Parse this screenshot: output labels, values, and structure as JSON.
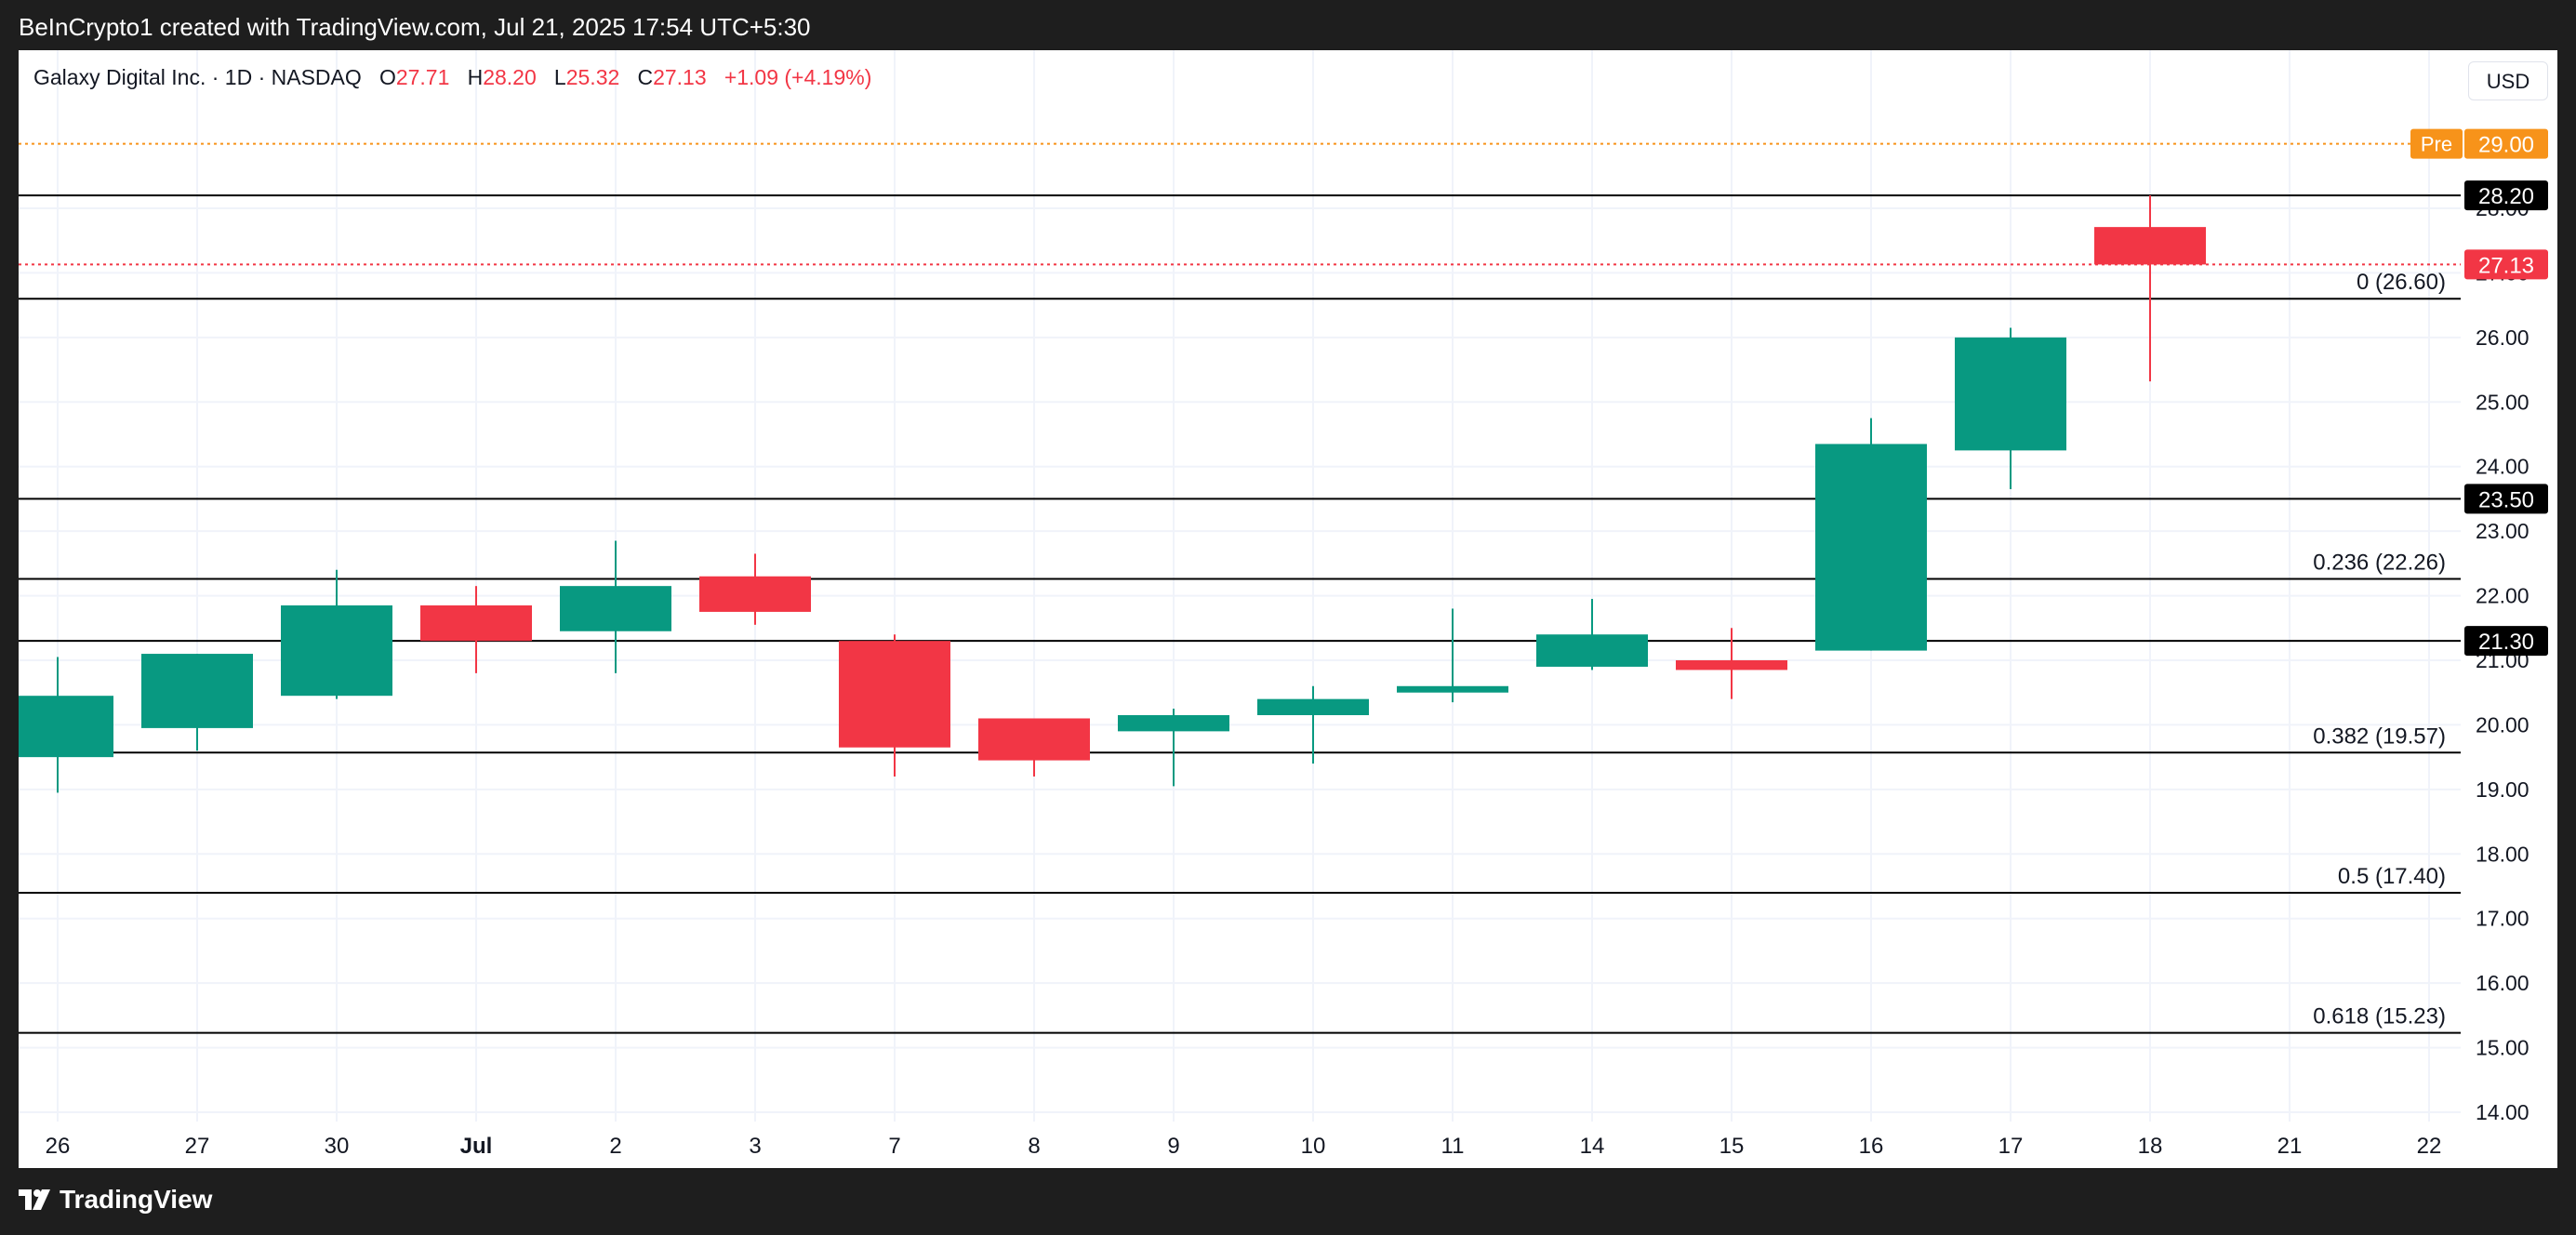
{
  "header": {
    "attribution": "BeInCrypto1 created with TradingView.com, Jul 21, 2025 17:54 UTC+5:30"
  },
  "legend": {
    "symbol": "Galaxy Digital Inc. · 1D · NASDAQ",
    "o_label": "O",
    "o_value": "27.71",
    "h_label": "H",
    "h_value": "28.20",
    "l_label": "L",
    "l_value": "25.32",
    "c_label": "C",
    "c_value": "27.13",
    "change": "+1.09 (+4.19%)"
  },
  "currency_button": "USD",
  "footer": {
    "brand": "TradingView"
  },
  "colors": {
    "up": "#089981",
    "down": "#f23645",
    "premarket": "#f7931a",
    "level": "#000000"
  },
  "chart_data": {
    "type": "candlestick",
    "title": "",
    "xlabel": "",
    "ylabel": "",
    "ylim": [
      14,
      30
    ],
    "grid": true,
    "y_ticks": [
      "14.00",
      "15.00",
      "16.00",
      "17.00",
      "18.00",
      "19.00",
      "20.00",
      "21.00",
      "22.00",
      "23.00",
      "24.00",
      "25.00",
      "26.00",
      "27.00",
      "28.00"
    ],
    "x_labels": [
      "26",
      "27",
      "30",
      "Jul",
      "2",
      "3",
      "7",
      "8",
      "9",
      "10",
      "11",
      "14",
      "15",
      "16",
      "17",
      "18",
      "21",
      "22"
    ],
    "candles": [
      {
        "x": "26",
        "open": 19.5,
        "high": 21.05,
        "low": 18.95,
        "close": 20.45
      },
      {
        "x": "27",
        "open": 19.95,
        "high": 21.1,
        "low": 19.6,
        "close": 21.1
      },
      {
        "x": "30",
        "open": 20.45,
        "high": 22.4,
        "low": 20.4,
        "close": 21.85
      },
      {
        "x": "Jul",
        "open": 21.85,
        "high": 22.15,
        "low": 20.8,
        "close": 21.3
      },
      {
        "x": "2",
        "open": 21.45,
        "high": 22.85,
        "low": 20.8,
        "close": 22.15
      },
      {
        "x": "3",
        "open": 22.3,
        "high": 22.65,
        "low": 21.55,
        "close": 21.75
      },
      {
        "x": "7",
        "open": 21.3,
        "high": 21.4,
        "low": 19.2,
        "close": 19.65
      },
      {
        "x": "8",
        "open": 20.1,
        "high": 20.1,
        "low": 19.2,
        "close": 19.45
      },
      {
        "x": "9",
        "open": 19.9,
        "high": 20.25,
        "low": 19.05,
        "close": 20.15
      },
      {
        "x": "10",
        "open": 20.15,
        "high": 20.6,
        "low": 19.4,
        "close": 20.4
      },
      {
        "x": "11",
        "open": 20.5,
        "high": 21.8,
        "low": 20.35,
        "close": 20.6
      },
      {
        "x": "14",
        "open": 20.9,
        "high": 21.95,
        "low": 20.85,
        "close": 21.4
      },
      {
        "x": "15",
        "open": 21.0,
        "high": 21.5,
        "low": 20.4,
        "close": 20.85
      },
      {
        "x": "16",
        "open": 21.15,
        "high": 24.75,
        "low": 21.15,
        "close": 24.35
      },
      {
        "x": "17",
        "open": 24.25,
        "high": 26.15,
        "low": 23.65,
        "close": 26.0
      },
      {
        "x": "18",
        "open": 27.71,
        "high": 28.2,
        "low": 25.32,
        "close": 27.13
      }
    ],
    "horizontal_levels": [
      {
        "price": 28.2,
        "label": "28.20"
      },
      {
        "price": 26.6
      },
      {
        "price": 23.5,
        "label": "23.50"
      },
      {
        "price": 22.26
      },
      {
        "price": 21.3,
        "label": "21.30"
      },
      {
        "price": 19.57
      },
      {
        "price": 17.4
      },
      {
        "price": 15.23
      }
    ],
    "fib_labels": [
      {
        "price": 26.6,
        "text": "0 (26.60)"
      },
      {
        "price": 22.26,
        "text": "0.236 (22.26)"
      },
      {
        "price": 19.57,
        "text": "0.382 (19.57)"
      },
      {
        "price": 17.4,
        "text": "0.5 (17.40)"
      },
      {
        "price": 15.23,
        "text": "0.618 (15.23)"
      }
    ],
    "premarket": {
      "label": "Pre",
      "price": 29.0,
      "text": "29.00"
    },
    "last_price": {
      "price": 27.13,
      "text": "27.13"
    }
  }
}
